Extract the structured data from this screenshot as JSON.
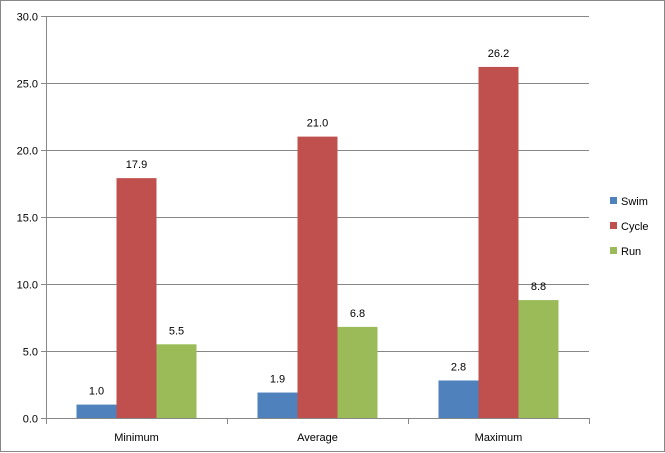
{
  "chart_data": {
    "type": "bar",
    "categories": [
      "Minimum",
      "Average",
      "Maximum"
    ],
    "series": [
      {
        "name": "Swim",
        "values": [
          1.0,
          1.9,
          2.8
        ],
        "color": "#4f81bd"
      },
      {
        "name": "Cycle",
        "values": [
          17.9,
          21.0,
          26.2
        ],
        "color": "#c0504d"
      },
      {
        "name": "Run",
        "values": [
          5.5,
          6.8,
          8.8
        ],
        "color": "#9bbb59"
      }
    ],
    "data_labels": [
      [
        "1.0",
        "1.9",
        "2.8"
      ],
      [
        "17.9",
        "21.0",
        "26.2"
      ],
      [
        "5.5",
        "6.8",
        "8.8"
      ]
    ],
    "y_ticks": [
      "0.0",
      "5.0",
      "10.0",
      "15.0",
      "20.0",
      "25.0",
      "30.0"
    ],
    "ylim": [
      0,
      30
    ],
    "grid": true,
    "legend_position": "right",
    "title": "",
    "xlabel": "",
    "ylabel": ""
  }
}
